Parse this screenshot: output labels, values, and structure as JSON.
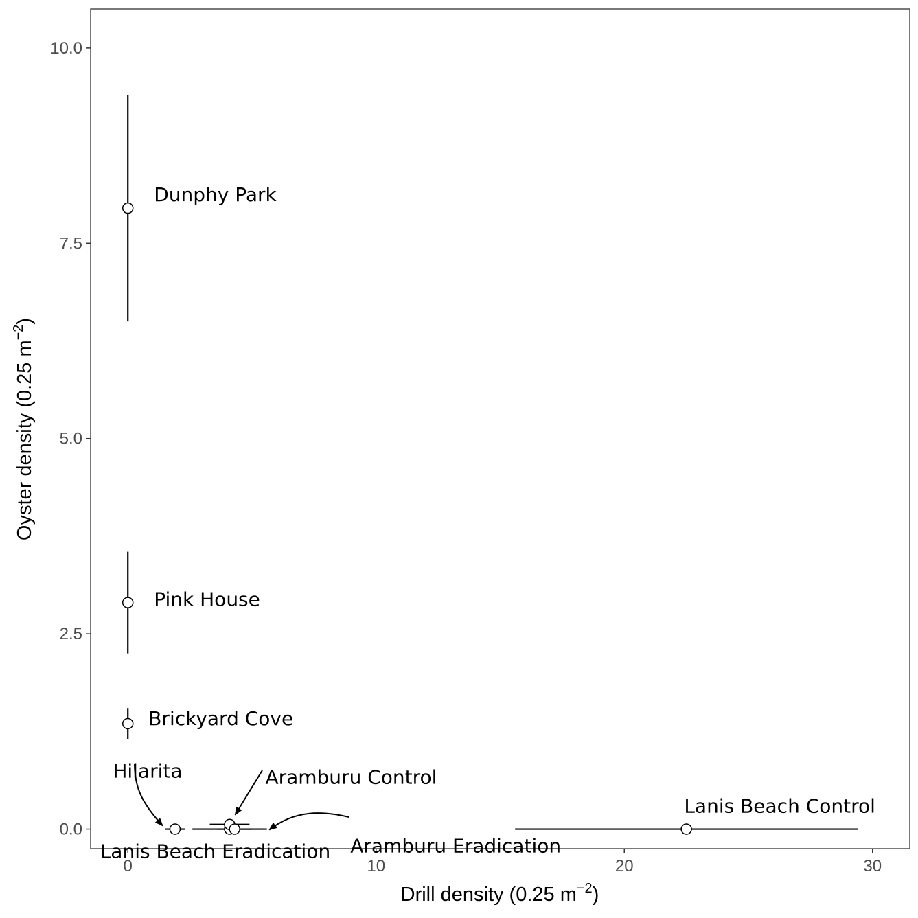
{
  "chart_data": {
    "type": "scatter",
    "title": "",
    "xlabel": "Drill density (0.25 m",
    "xlabel_sup": "−2",
    "xlabel_close": ")",
    "ylabel": "Oyster density (0.25 m",
    "ylabel_sup": "−2",
    "ylabel_close": ")",
    "xlim": [
      -1.5,
      31.5
    ],
    "ylim": [
      -0.25,
      10.5
    ],
    "x_ticks": [
      {
        "value": 0,
        "label": "0"
      },
      {
        "value": 10,
        "label": "10"
      },
      {
        "value": 20,
        "label": "20"
      },
      {
        "value": 30,
        "label": "30"
      }
    ],
    "y_ticks": [
      {
        "value": 0,
        "label": "0.0"
      },
      {
        "value": 2.5,
        "label": "2.5"
      },
      {
        "value": 5,
        "label": "5.0"
      },
      {
        "value": 7.5,
        "label": "7.5"
      },
      {
        "value": 10,
        "label": "10.0"
      }
    ],
    "grid": false,
    "legend": "none",
    "points": [
      {
        "label": "Dunphy Park",
        "x": 0,
        "y": 7.95,
        "y_err": [
          6.5,
          9.4
        ],
        "x_err": null
      },
      {
        "label": "Pink House",
        "x": 0,
        "y": 2.9,
        "y_err": [
          2.25,
          3.55
        ],
        "x_err": null
      },
      {
        "label": "Brickyard Cove",
        "x": 0,
        "y": 1.35,
        "y_err": [
          1.15,
          1.55
        ],
        "x_err": null
      },
      {
        "label": "Hilarita",
        "x": 1.9,
        "y": 0,
        "y_err": null,
        "x_err": [
          1.5,
          2.3
        ]
      },
      {
        "label": "Lanis Beach Eradication",
        "x": 4.1,
        "y": 0,
        "y_err": null,
        "x_err": [
          2.6,
          5.6
        ]
      },
      {
        "label": "Aramburu Control",
        "x": 4.1,
        "y": 0.06,
        "y_err": null,
        "x_err": [
          3.3,
          4.9
        ]
      },
      {
        "label": "Aramburu Eradication",
        "x": 4.3,
        "y": 0,
        "y_err": null,
        "x_err": [
          3.6,
          5.0
        ]
      },
      {
        "label": "Lanis Beach Control",
        "x": 22.5,
        "y": 0,
        "y_err": null,
        "x_err": [
          15.6,
          29.4
        ]
      }
    ],
    "annotations": [
      {
        "text": "Dunphy Park",
        "point": 0,
        "arrow": false
      },
      {
        "text": "Pink House",
        "point": 1,
        "arrow": false
      },
      {
        "text": "Brickyard Cove",
        "point": 2,
        "arrow": false
      },
      {
        "text": "Hilarita",
        "point": 3,
        "arrow": true
      },
      {
        "text": "Lanis Beach Eradication",
        "point": 4,
        "arrow": false
      },
      {
        "text": "Aramburu Control",
        "point": 5,
        "arrow": true
      },
      {
        "text": "Aramburu Eradication",
        "point": 6,
        "arrow": true
      },
      {
        "text": "Lanis Beach Control",
        "point": 7,
        "arrow": false
      }
    ]
  }
}
